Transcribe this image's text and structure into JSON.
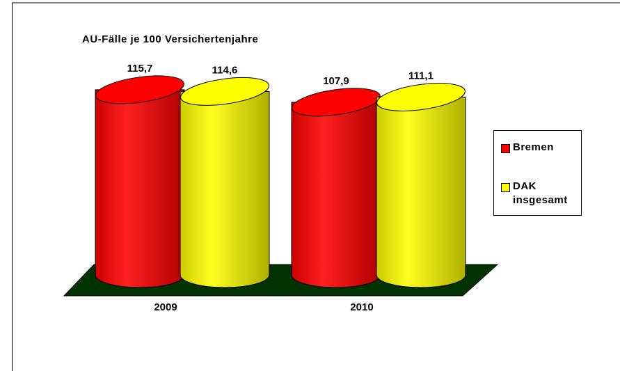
{
  "chart_data": {
    "type": "bar",
    "title": "AU-Fälle je 100 Versichertenjahre",
    "categories": [
      "2009",
      "2010"
    ],
    "series": [
      {
        "name": "Bremen",
        "color": "#ff0000",
        "values": [
          115.7,
          107.9
        ],
        "value_labels": [
          "115,7",
          "107,9"
        ]
      },
      {
        "name": "DAK insgesamt",
        "color": "#ffff00",
        "values": [
          114.6,
          111.1
        ],
        "value_labels": [
          "114,6",
          "111,1"
        ]
      }
    ]
  }
}
